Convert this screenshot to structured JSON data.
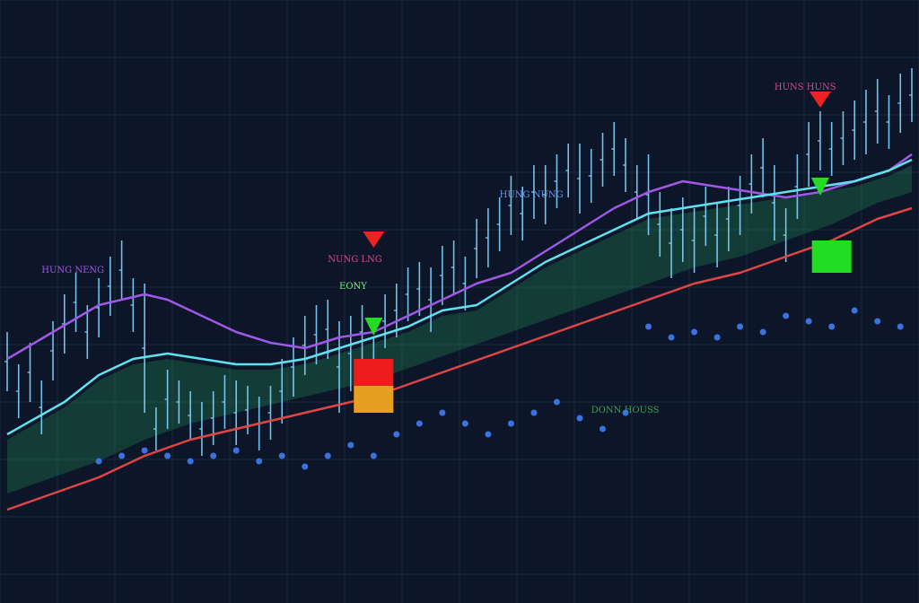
{
  "chart_data": {
    "type": "line",
    "title": "",
    "xlabel": "",
    "ylabel": "",
    "grid": true,
    "x_count": 80,
    "ylim": [
      0,
      100
    ],
    "colors": {
      "background": "#0c1628",
      "grid": "#1a2a40",
      "price": "#7fd3ff",
      "fast_ma": "#5ee2f0",
      "slow_ma": "#a057e6",
      "trend_ma": "#e04545",
      "dots": "#3a72e0",
      "cloud": "#1f6a4a",
      "buy": "#22dd22",
      "sell": "#ee2222"
    },
    "price_bars": [
      [
        0,
        34,
        45
      ],
      [
        1,
        29,
        39
      ],
      [
        2,
        32,
        43
      ],
      [
        3,
        26,
        36
      ],
      [
        4,
        36,
        47
      ],
      [
        5,
        41,
        52
      ],
      [
        6,
        45,
        56
      ],
      [
        7,
        40,
        50
      ],
      [
        8,
        44,
        55
      ],
      [
        9,
        48,
        59
      ],
      [
        10,
        51,
        62
      ],
      [
        11,
        45,
        55
      ],
      [
        12,
        30,
        54
      ],
      [
        13,
        23,
        31
      ],
      [
        14,
        27,
        38
      ],
      [
        15,
        28,
        36
      ],
      [
        16,
        25,
        34
      ],
      [
        17,
        22,
        32
      ],
      [
        18,
        24,
        34
      ],
      [
        19,
        27,
        37
      ],
      [
        20,
        24,
        36
      ],
      [
        21,
        26,
        35
      ],
      [
        22,
        23,
        33
      ],
      [
        23,
        25,
        35
      ],
      [
        24,
        28,
        40
      ],
      [
        25,
        33,
        44
      ],
      [
        26,
        37,
        48
      ],
      [
        27,
        39,
        50
      ],
      [
        28,
        40,
        51
      ],
      [
        29,
        30,
        47
      ],
      [
        30,
        34,
        48
      ],
      [
        31,
        40,
        50
      ],
      [
        32,
        33,
        44
      ],
      [
        33,
        42,
        52
      ],
      [
        34,
        44,
        54
      ],
      [
        35,
        47,
        57
      ],
      [
        36,
        48,
        58
      ],
      [
        37,
        45,
        57
      ],
      [
        38,
        50,
        61
      ],
      [
        39,
        52,
        62
      ],
      [
        40,
        49,
        59
      ],
      [
        41,
        55,
        66
      ],
      [
        42,
        57,
        68
      ],
      [
        43,
        60,
        70
      ],
      [
        44,
        63,
        74
      ],
      [
        45,
        62,
        72
      ],
      [
        46,
        66,
        76
      ],
      [
        47,
        65,
        76
      ],
      [
        48,
        68,
        78
      ],
      [
        49,
        70,
        80
      ],
      [
        50,
        67,
        80
      ],
      [
        51,
        69,
        79
      ],
      [
        52,
        72,
        82
      ],
      [
        53,
        74,
        84
      ],
      [
        54,
        71,
        81
      ],
      [
        55,
        66,
        76
      ],
      [
        56,
        63,
        78
      ],
      [
        57,
        59,
        71
      ],
      [
        58,
        55,
        68
      ],
      [
        59,
        58,
        70
      ],
      [
        60,
        56,
        68
      ],
      [
        61,
        61,
        72
      ],
      [
        62,
        57,
        69
      ],
      [
        63,
        60,
        72
      ],
      [
        64,
        63,
        74
      ],
      [
        65,
        67,
        78
      ],
      [
        66,
        70,
        81
      ],
      [
        67,
        62,
        76
      ],
      [
        68,
        58,
        68
      ],
      [
        69,
        66,
        78
      ],
      [
        70,
        72,
        84
      ],
      [
        71,
        75,
        86
      ],
      [
        72,
        74,
        84
      ],
      [
        73,
        76,
        86
      ],
      [
        74,
        77,
        88
      ],
      [
        75,
        78,
        90
      ],
      [
        76,
        80,
        92
      ],
      [
        77,
        79,
        89
      ],
      [
        78,
        82,
        93
      ],
      [
        79,
        84,
        94
      ]
    ],
    "series": [
      {
        "key": "slow_ma",
        "values": [
          [
            0,
            40
          ],
          [
            4,
            45
          ],
          [
            8,
            50
          ],
          [
            12,
            52
          ],
          [
            14,
            51
          ],
          [
            17,
            48
          ],
          [
            20,
            45
          ],
          [
            23,
            43
          ],
          [
            26,
            42
          ],
          [
            29,
            44
          ],
          [
            32,
            45
          ],
          [
            35,
            48
          ],
          [
            38,
            51
          ],
          [
            41,
            54
          ],
          [
            44,
            56
          ],
          [
            47,
            60
          ],
          [
            50,
            64
          ],
          [
            53,
            68
          ],
          [
            56,
            71
          ],
          [
            59,
            73
          ],
          [
            62,
            72
          ],
          [
            65,
            71
          ],
          [
            68,
            70
          ],
          [
            71,
            71
          ],
          [
            74,
            73
          ],
          [
            77,
            75
          ],
          [
            79,
            78
          ]
        ]
      },
      {
        "key": "fast_ma",
        "values": [
          [
            0,
            26
          ],
          [
            5,
            32
          ],
          [
            8,
            37
          ],
          [
            11,
            40
          ],
          [
            14,
            41
          ],
          [
            17,
            40
          ],
          [
            20,
            39
          ],
          [
            23,
            39
          ],
          [
            26,
            40
          ],
          [
            29,
            42
          ],
          [
            32,
            44
          ],
          [
            35,
            46
          ],
          [
            38,
            49
          ],
          [
            41,
            50
          ],
          [
            44,
            54
          ],
          [
            47,
            58
          ],
          [
            50,
            61
          ],
          [
            53,
            64
          ],
          [
            56,
            67
          ],
          [
            59,
            68
          ],
          [
            62,
            69
          ],
          [
            65,
            70
          ],
          [
            68,
            71
          ],
          [
            71,
            72
          ],
          [
            74,
            73
          ],
          [
            77,
            75
          ],
          [
            79,
            77
          ]
        ]
      },
      {
        "key": "trend_ma",
        "values": [
          [
            0,
            12
          ],
          [
            4,
            15
          ],
          [
            8,
            18
          ],
          [
            12,
            22
          ],
          [
            16,
            25
          ],
          [
            20,
            27
          ],
          [
            24,
            29
          ],
          [
            28,
            31
          ],
          [
            32,
            33
          ],
          [
            36,
            36
          ],
          [
            40,
            39
          ],
          [
            44,
            42
          ],
          [
            48,
            45
          ],
          [
            52,
            48
          ],
          [
            56,
            51
          ],
          [
            60,
            54
          ],
          [
            64,
            56
          ],
          [
            68,
            59
          ],
          [
            72,
            62
          ],
          [
            76,
            66
          ],
          [
            79,
            68
          ]
        ]
      }
    ],
    "dots": [
      [
        8,
        21
      ],
      [
        10,
        22
      ],
      [
        12,
        23
      ],
      [
        14,
        22
      ],
      [
        16,
        21
      ],
      [
        18,
        22
      ],
      [
        20,
        23
      ],
      [
        22,
        21
      ],
      [
        24,
        22
      ],
      [
        26,
        20
      ],
      [
        28,
        22
      ],
      [
        30,
        24
      ],
      [
        32,
        22
      ],
      [
        34,
        26
      ],
      [
        36,
        28
      ],
      [
        38,
        30
      ],
      [
        40,
        28
      ],
      [
        42,
        26
      ],
      [
        44,
        28
      ],
      [
        46,
        30
      ],
      [
        48,
        32
      ],
      [
        50,
        29
      ],
      [
        52,
        27
      ],
      [
        54,
        30
      ],
      [
        56,
        46
      ],
      [
        58,
        44
      ],
      [
        60,
        45
      ],
      [
        62,
        44
      ],
      [
        64,
        46
      ],
      [
        66,
        45
      ],
      [
        68,
        48
      ],
      [
        70,
        47
      ],
      [
        72,
        46
      ],
      [
        74,
        49
      ],
      [
        76,
        47
      ],
      [
        78,
        46
      ]
    ],
    "markers": [
      {
        "type": "sell",
        "x": 32,
        "y": 62
      },
      {
        "type": "buy",
        "x": 32,
        "y": 46
      },
      {
        "type": "sell",
        "x": 71,
        "y": 88
      },
      {
        "type": "buy",
        "x": 71,
        "y": 72
      }
    ],
    "boxes": [
      {
        "x": 32,
        "y_low": 30,
        "y_high": 40,
        "color": "#ee1c1c"
      },
      {
        "x": 32,
        "y_low": 30,
        "y_high": 35,
        "color": "#e6a020"
      },
      {
        "x": 72,
        "y_low": 56,
        "y_high": 62,
        "color": "#22dd22"
      }
    ],
    "annotations": [
      {
        "text": "HUNG NENG",
        "x": 3,
        "y": 56,
        "color": "#a057e6"
      },
      {
        "text": "NUNG LNG",
        "x": 28,
        "y": 58,
        "color": "#d84a8a"
      },
      {
        "text": "EONY",
        "x": 29,
        "y": 53,
        "color": "#7aee7a"
      },
      {
        "text": "HUNG NUNG",
        "x": 43,
        "y": 70,
        "color": "#6a8fe8"
      },
      {
        "text": "HUNS HUNS",
        "x": 67,
        "y": 90,
        "color": "#d84a8a"
      },
      {
        "text": "DONN HOUSS",
        "x": 51,
        "y": 30,
        "color": "#3aa050"
      }
    ]
  }
}
